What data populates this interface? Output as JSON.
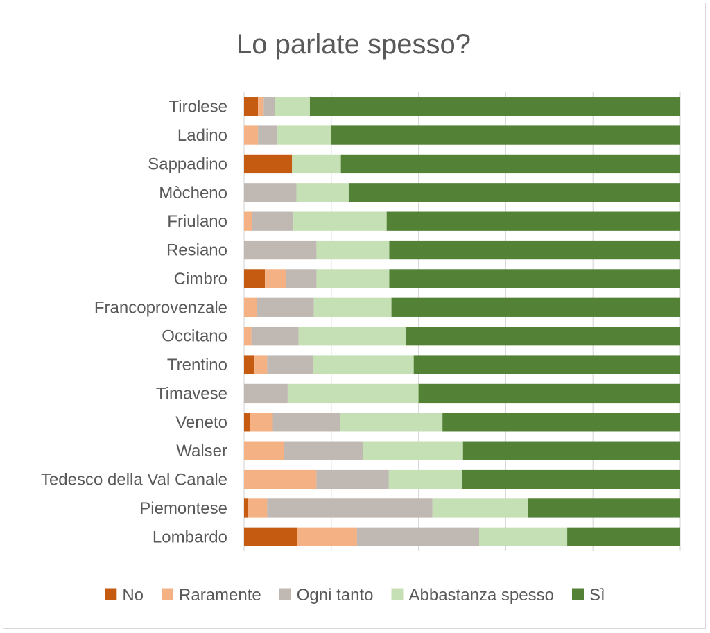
{
  "chart_data": {
    "type": "bar",
    "orientation": "horizontal",
    "stacked": "percent",
    "title": "Lo parlate spesso?",
    "categories": [
      "Tirolese",
      "Ladino",
      "Sappadino",
      "Mòcheno",
      "Friulano",
      "Resiano",
      "Cimbro",
      "Francoprovenzale",
      "Occitano",
      "Trentino",
      "Timavese",
      "Veneto",
      "Walser",
      "Tedesco della Val Canale",
      "Piemontese",
      "Lombardo"
    ],
    "series": [
      {
        "name": "No",
        "color": "#c55a11",
        "values": [
          3.2,
          0,
          11.0,
          0,
          0,
          0,
          4.8,
          0,
          0,
          2.4,
          0,
          1.3,
          0,
          0,
          0.9,
          12.1
        ]
      },
      {
        "name": "Raramente",
        "color": "#f4b183",
        "values": [
          1.3,
          3.2,
          0,
          0,
          1.9,
          0,
          4.8,
          3.0,
          1.7,
          2.9,
          0,
          5.3,
          9.1,
          16.6,
          4.4,
          13.8
        ]
      },
      {
        "name": "Ogni tanto",
        "color": "#c0b8b2",
        "values": [
          2.5,
          4.3,
          0,
          12.0,
          9.4,
          16.6,
          7.0,
          13.0,
          10.8,
          10.6,
          10.0,
          15.4,
          18.1,
          16.6,
          37.9,
          28.0
        ]
      },
      {
        "name": "Abbastanza spesso",
        "color": "#c5e0b4",
        "values": [
          8.1,
          12.5,
          11.2,
          12.0,
          21.4,
          16.7,
          16.7,
          17.8,
          24.7,
          23.0,
          30.0,
          23.5,
          23.0,
          16.8,
          21.9,
          20.2
        ]
      },
      {
        "name": "Sì",
        "color": "#538135",
        "values": [
          84.9,
          80.0,
          77.8,
          76.0,
          67.3,
          66.7,
          66.7,
          66.2,
          62.8,
          61.1,
          60.0,
          54.5,
          49.8,
          50.0,
          34.9,
          25.9
        ]
      }
    ],
    "xlim": [
      0,
      100
    ],
    "grid": true,
    "legend_position": "bottom"
  }
}
